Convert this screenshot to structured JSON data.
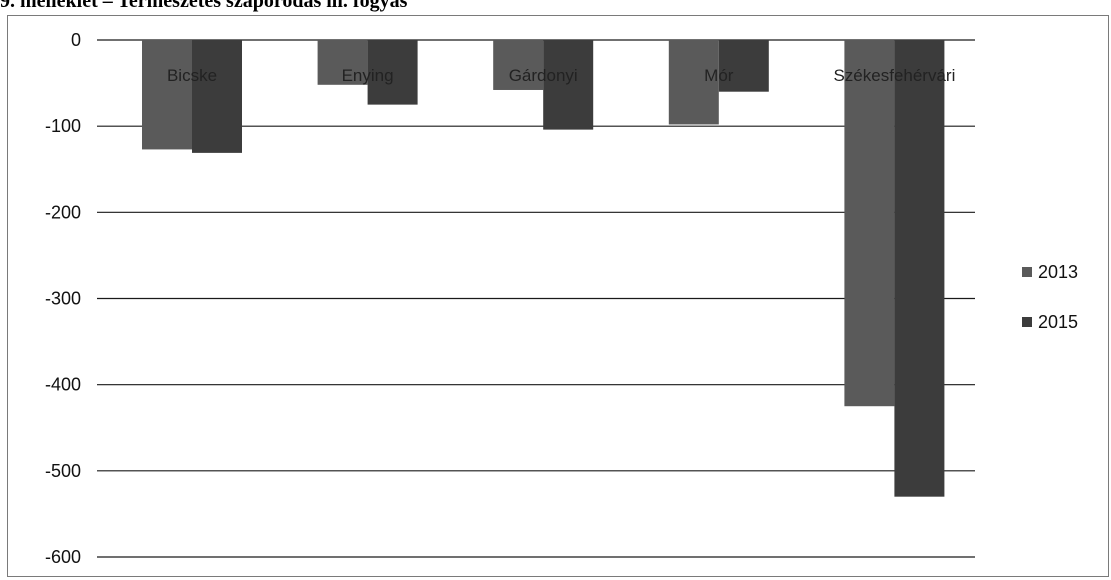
{
  "caption": "9.   melléklet – Természetes szaporodás ill. fogyás",
  "chart_data": {
    "type": "bar",
    "categories": [
      "Bicske",
      "Enying",
      "Gárdonyi",
      "Mór",
      "Székesfehérvári"
    ],
    "series": [
      {
        "name": "2013",
        "values": [
          -127,
          -52,
          -58,
          -98,
          -425
        ],
        "color": "#5a5a5a"
      },
      {
        "name": "2015",
        "values": [
          -131,
          -75,
          -104,
          -60,
          -530
        ],
        "color": "#3c3c3c"
      }
    ],
    "ylim": [
      -600,
      0
    ],
    "yticks": [
      0,
      -100,
      -200,
      -300,
      -400,
      -500,
      -600
    ],
    "grid": true,
    "legend": "right",
    "title": "",
    "xlabel": "",
    "ylabel": ""
  }
}
